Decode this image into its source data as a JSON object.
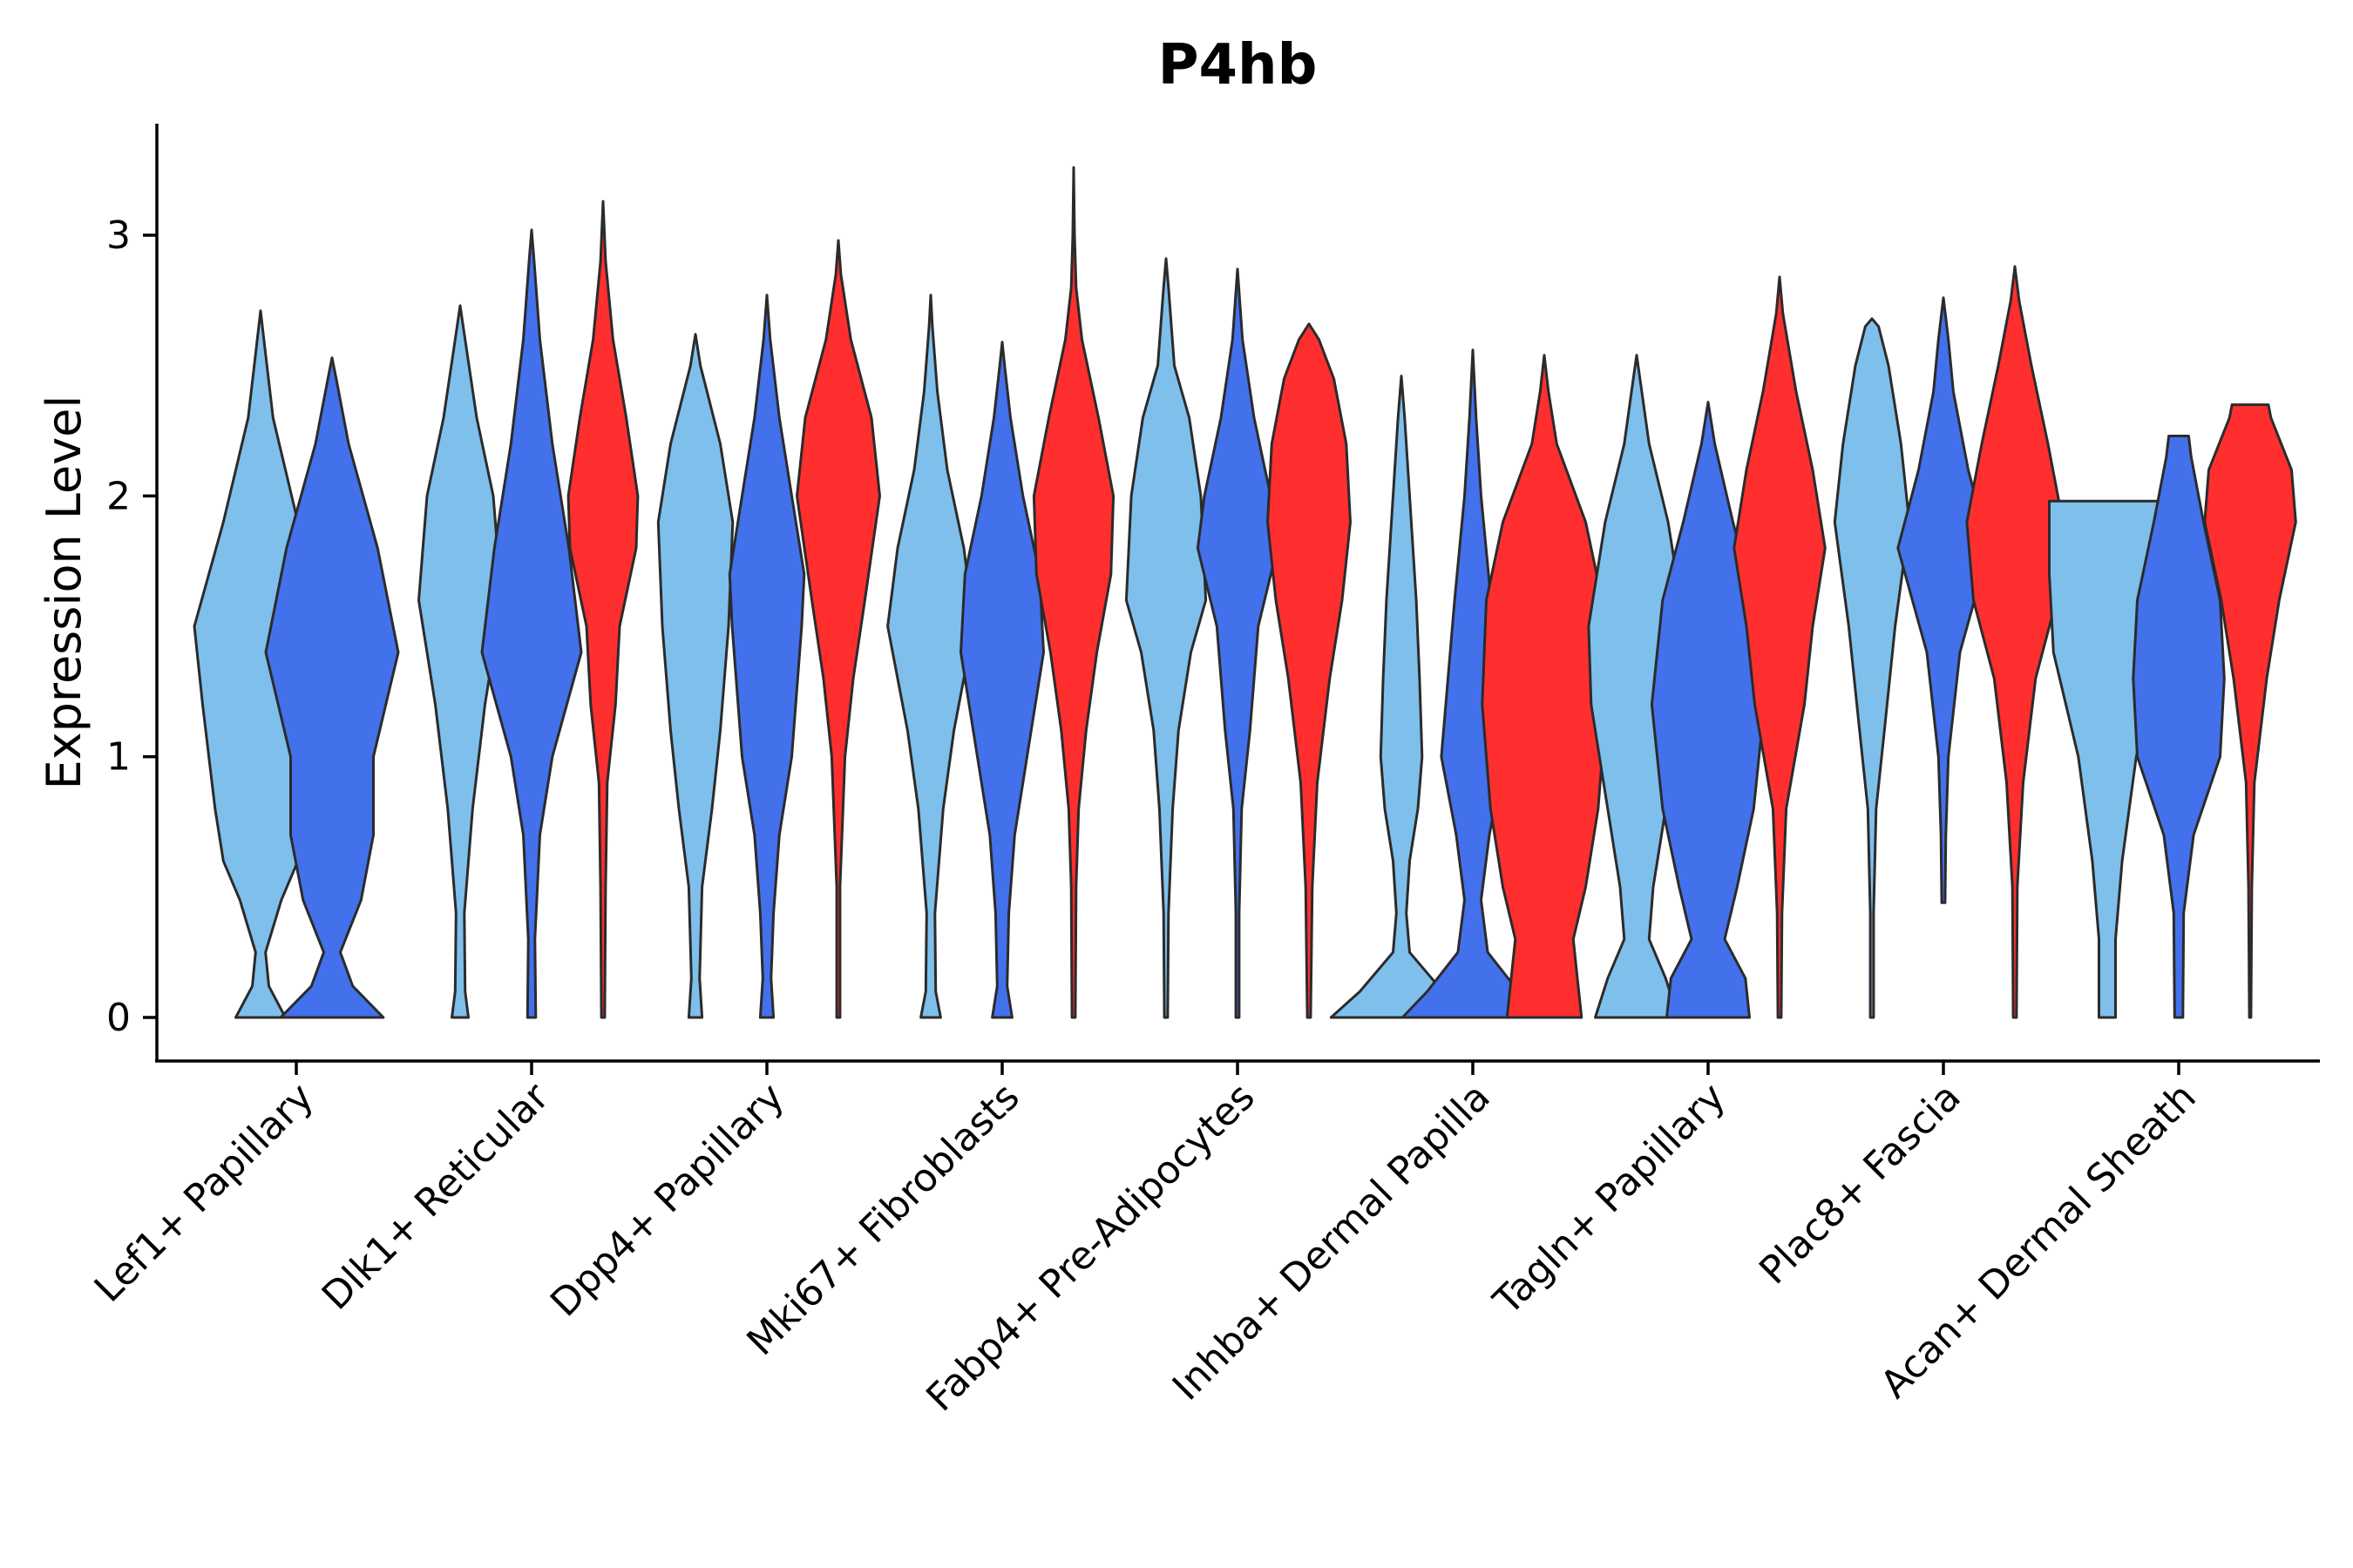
{
  "chart_data": {
    "type": "violin",
    "title": "P4hb",
    "xlabel": "",
    "ylabel": "Expression Level",
    "ylim": [
      -0.16,
      3.42
    ],
    "yticks": [
      0,
      1,
      2,
      3
    ],
    "grid": false,
    "legend": "none",
    "series_colors": [
      "#7fbfec",
      "#4371ec",
      "#ff2f2f"
    ],
    "categories": [
      "Lef1+ Papillary",
      "Dlk1+ Reticular",
      "Dpp4+ Papillary",
      "Mki67+ Fibroblasts",
      "Fabp4+ Pre-Adipocytes",
      "Inhba+ Dermal Papilla",
      "Tagln+ Papillary",
      "Plac8+ Fascia",
      "Acan+ Dermal Sheath"
    ],
    "violins": [
      {
        "category": 0,
        "series": 0,
        "min": 0,
        "max": 2.71,
        "profile": [
          [
            0,
            0.3
          ],
          [
            0.12,
            0.1
          ],
          [
            0.25,
            0.06
          ],
          [
            0.45,
            0.25
          ],
          [
            0.6,
            0.45
          ],
          [
            0.8,
            0.55
          ],
          [
            1.2,
            0.7
          ],
          [
            1.5,
            0.8
          ],
          [
            1.9,
            0.45
          ],
          [
            2.3,
            0.15
          ],
          [
            2.6,
            0.04
          ],
          [
            2.71,
            0
          ]
        ]
      },
      {
        "category": 0,
        "series": 1,
        "min": 0,
        "max": 2.53,
        "profile": [
          [
            0,
            0.62
          ],
          [
            0.12,
            0.25
          ],
          [
            0.25,
            0.1
          ],
          [
            0.45,
            0.35
          ],
          [
            0.7,
            0.5
          ],
          [
            1.0,
            0.5
          ],
          [
            1.4,
            0.8
          ],
          [
            1.8,
            0.55
          ],
          [
            2.2,
            0.2
          ],
          [
            2.45,
            0.05
          ],
          [
            2.53,
            0
          ]
        ]
      },
      {
        "category": 1,
        "series": 0,
        "min": 0,
        "max": 2.73,
        "profile": [
          [
            0,
            0.1
          ],
          [
            0.1,
            0.06
          ],
          [
            0.4,
            0.05
          ],
          [
            0.8,
            0.15
          ],
          [
            1.2,
            0.3
          ],
          [
            1.6,
            0.5
          ],
          [
            2.0,
            0.4
          ],
          [
            2.3,
            0.2
          ],
          [
            2.6,
            0.06
          ],
          [
            2.73,
            0
          ]
        ]
      },
      {
        "category": 1,
        "series": 1,
        "min": 0,
        "max": 3.02,
        "profile": [
          [
            0,
            0.05
          ],
          [
            0.3,
            0.04
          ],
          [
            0.7,
            0.1
          ],
          [
            1.0,
            0.25
          ],
          [
            1.4,
            0.6
          ],
          [
            1.8,
            0.45
          ],
          [
            2.2,
            0.25
          ],
          [
            2.6,
            0.1
          ],
          [
            2.9,
            0.03
          ],
          [
            3.02,
            0
          ]
        ]
      },
      {
        "category": 1,
        "series": 2,
        "min": 0,
        "max": 3.13,
        "profile": [
          [
            0,
            0.02
          ],
          [
            0.5,
            0.03
          ],
          [
            0.9,
            0.05
          ],
          [
            1.2,
            0.15
          ],
          [
            1.5,
            0.2
          ],
          [
            1.8,
            0.4
          ],
          [
            2.0,
            0.42
          ],
          [
            2.3,
            0.28
          ],
          [
            2.6,
            0.12
          ],
          [
            2.9,
            0.03
          ],
          [
            3.13,
            0
          ]
        ]
      },
      {
        "category": 2,
        "series": 0,
        "min": 0,
        "max": 2.62,
        "profile": [
          [
            0,
            0.08
          ],
          [
            0.15,
            0.05
          ],
          [
            0.5,
            0.08
          ],
          [
            0.8,
            0.2
          ],
          [
            1.1,
            0.3
          ],
          [
            1.5,
            0.4
          ],
          [
            1.9,
            0.45
          ],
          [
            2.2,
            0.3
          ],
          [
            2.5,
            0.06
          ],
          [
            2.62,
            0
          ]
        ]
      },
      {
        "category": 2,
        "series": 1,
        "min": 0,
        "max": 2.77,
        "profile": [
          [
            0,
            0.08
          ],
          [
            0.15,
            0.05
          ],
          [
            0.4,
            0.08
          ],
          [
            0.7,
            0.15
          ],
          [
            1.0,
            0.3
          ],
          [
            1.5,
            0.42
          ],
          [
            1.7,
            0.45
          ],
          [
            2.0,
            0.3
          ],
          [
            2.3,
            0.15
          ],
          [
            2.6,
            0.04
          ],
          [
            2.77,
            0
          ]
        ]
      },
      {
        "category": 2,
        "series": 2,
        "min": 0,
        "max": 2.98,
        "profile": [
          [
            0,
            0.02
          ],
          [
            0.5,
            0.02
          ],
          [
            1.0,
            0.08
          ],
          [
            1.3,
            0.18
          ],
          [
            1.6,
            0.32
          ],
          [
            2.0,
            0.5
          ],
          [
            2.3,
            0.4
          ],
          [
            2.6,
            0.15
          ],
          [
            2.85,
            0.03
          ],
          [
            2.98,
            0
          ]
        ]
      },
      {
        "category": 3,
        "series": 0,
        "min": 0,
        "max": 2.77,
        "profile": [
          [
            0,
            0.12
          ],
          [
            0.1,
            0.06
          ],
          [
            0.4,
            0.05
          ],
          [
            0.8,
            0.15
          ],
          [
            1.1,
            0.28
          ],
          [
            1.5,
            0.52
          ],
          [
            1.8,
            0.4
          ],
          [
            2.1,
            0.2
          ],
          [
            2.4,
            0.08
          ],
          [
            2.65,
            0.02
          ],
          [
            2.77,
            0
          ]
        ]
      },
      {
        "category": 3,
        "series": 1,
        "min": 0,
        "max": 2.59,
        "profile": [
          [
            0,
            0.12
          ],
          [
            0.12,
            0.06
          ],
          [
            0.4,
            0.08
          ],
          [
            0.7,
            0.15
          ],
          [
            1.0,
            0.3
          ],
          [
            1.4,
            0.5
          ],
          [
            1.7,
            0.45
          ],
          [
            2.0,
            0.25
          ],
          [
            2.3,
            0.1
          ],
          [
            2.5,
            0.03
          ],
          [
            2.59,
            0
          ]
        ]
      },
      {
        "category": 3,
        "series": 2,
        "min": 0,
        "max": 3.26,
        "profile": [
          [
            0,
            0.02
          ],
          [
            0.5,
            0.03
          ],
          [
            0.8,
            0.06
          ],
          [
            1.1,
            0.15
          ],
          [
            1.4,
            0.28
          ],
          [
            1.7,
            0.45
          ],
          [
            2.0,
            0.48
          ],
          [
            2.3,
            0.3
          ],
          [
            2.6,
            0.1
          ],
          [
            2.8,
            0.03
          ],
          [
            3.0,
            0.01
          ],
          [
            3.26,
            0
          ]
        ]
      },
      {
        "category": 4,
        "series": 0,
        "min": 0,
        "max": 2.91,
        "profile": [
          [
            0,
            0.02
          ],
          [
            0.4,
            0.03
          ],
          [
            0.8,
            0.08
          ],
          [
            1.1,
            0.15
          ],
          [
            1.4,
            0.3
          ],
          [
            1.6,
            0.48
          ],
          [
            2.0,
            0.42
          ],
          [
            2.3,
            0.28
          ],
          [
            2.5,
            0.1
          ],
          [
            2.8,
            0.03
          ],
          [
            2.91,
            0
          ]
        ]
      },
      {
        "category": 4,
        "series": 1,
        "min": 0,
        "max": 2.87,
        "profile": [
          [
            0,
            0.02
          ],
          [
            0.4,
            0.02
          ],
          [
            0.8,
            0.05
          ],
          [
            1.1,
            0.15
          ],
          [
            1.5,
            0.25
          ],
          [
            1.8,
            0.48
          ],
          [
            2.0,
            0.4
          ],
          [
            2.3,
            0.2
          ],
          [
            2.6,
            0.06
          ],
          [
            2.87,
            0
          ]
        ]
      },
      {
        "category": 4,
        "series": 2,
        "min": 0,
        "max": 2.66,
        "profile": [
          [
            0,
            0.02
          ],
          [
            0.5,
            0.04
          ],
          [
            0.9,
            0.1
          ],
          [
            1.3,
            0.25
          ],
          [
            1.6,
            0.4
          ],
          [
            1.9,
            0.5
          ],
          [
            2.2,
            0.45
          ],
          [
            2.45,
            0.3
          ],
          [
            2.6,
            0.12
          ],
          [
            2.66,
            0
          ]
        ]
      },
      {
        "category": 5,
        "series": 0,
        "min": 0,
        "max": 2.46,
        "profile": [
          [
            0,
            0.85
          ],
          [
            0.1,
            0.5
          ],
          [
            0.25,
            0.1
          ],
          [
            0.4,
            0.06
          ],
          [
            0.6,
            0.1
          ],
          [
            0.8,
            0.2
          ],
          [
            1.0,
            0.25
          ],
          [
            1.3,
            0.22
          ],
          [
            1.6,
            0.18
          ],
          [
            2.0,
            0.1
          ],
          [
            2.3,
            0.04
          ],
          [
            2.46,
            0
          ]
        ]
      },
      {
        "category": 5,
        "series": 1,
        "min": 0,
        "max": 2.56,
        "profile": [
          [
            0,
            0.85
          ],
          [
            0.1,
            0.55
          ],
          [
            0.25,
            0.18
          ],
          [
            0.45,
            0.1
          ],
          [
            0.7,
            0.2
          ],
          [
            1.0,
            0.38
          ],
          [
            1.3,
            0.3
          ],
          [
            1.6,
            0.22
          ],
          [
            2.0,
            0.1
          ],
          [
            2.3,
            0.04
          ],
          [
            2.56,
            0
          ]
        ]
      },
      {
        "category": 5,
        "series": 2,
        "min": 0,
        "max": 2.54,
        "profile": [
          [
            0,
            0.45
          ],
          [
            0.15,
            0.4
          ],
          [
            0.3,
            0.35
          ],
          [
            0.5,
            0.5
          ],
          [
            0.8,
            0.65
          ],
          [
            1.2,
            0.75
          ],
          [
            1.6,
            0.7
          ],
          [
            1.9,
            0.5
          ],
          [
            2.2,
            0.15
          ],
          [
            2.4,
            0.05
          ],
          [
            2.54,
            0
          ]
        ]
      },
      {
        "category": 6,
        "series": 0,
        "min": 0,
        "max": 2.54,
        "profile": [
          [
            0,
            0.5
          ],
          [
            0.15,
            0.35
          ],
          [
            0.3,
            0.15
          ],
          [
            0.5,
            0.2
          ],
          [
            0.8,
            0.35
          ],
          [
            1.2,
            0.55
          ],
          [
            1.5,
            0.58
          ],
          [
            1.9,
            0.38
          ],
          [
            2.2,
            0.15
          ],
          [
            2.45,
            0.04
          ],
          [
            2.54,
            0
          ]
        ]
      },
      {
        "category": 6,
        "series": 1,
        "min": 0,
        "max": 2.36,
        "profile": [
          [
            0,
            0.5
          ],
          [
            0.15,
            0.45
          ],
          [
            0.3,
            0.2
          ],
          [
            0.5,
            0.35
          ],
          [
            0.8,
            0.55
          ],
          [
            1.2,
            0.68
          ],
          [
            1.6,
            0.55
          ],
          [
            1.9,
            0.3
          ],
          [
            2.2,
            0.08
          ],
          [
            2.36,
            0
          ]
        ]
      },
      {
        "category": 6,
        "series": 2,
        "min": 0,
        "max": 2.84,
        "profile": [
          [
            0,
            0.02
          ],
          [
            0.4,
            0.03
          ],
          [
            0.8,
            0.08
          ],
          [
            1.2,
            0.3
          ],
          [
            1.5,
            0.4
          ],
          [
            1.8,
            0.55
          ],
          [
            2.1,
            0.4
          ],
          [
            2.4,
            0.2
          ],
          [
            2.7,
            0.04
          ],
          [
            2.84,
            0
          ]
        ]
      },
      {
        "category": 7,
        "series": 0,
        "min": 0,
        "max": 2.68,
        "profile": [
          [
            0,
            0.02
          ],
          [
            0.4,
            0.02
          ],
          [
            0.8,
            0.05
          ],
          [
            1.1,
            0.15
          ],
          [
            1.5,
            0.28
          ],
          [
            1.9,
            0.45
          ],
          [
            2.2,
            0.35
          ],
          [
            2.5,
            0.2
          ],
          [
            2.65,
            0.08
          ],
          [
            2.68,
            0
          ]
        ]
      },
      {
        "category": 7,
        "series": 1,
        "min": 0.44,
        "max": 2.76,
        "profile": [
          [
            0.44,
            0.02
          ],
          [
            0.7,
            0.03
          ],
          [
            1.0,
            0.06
          ],
          [
            1.4,
            0.2
          ],
          [
            1.8,
            0.55
          ],
          [
            2.1,
            0.3
          ],
          [
            2.4,
            0.12
          ],
          [
            2.6,
            0.06
          ],
          [
            2.76,
            0
          ]
        ]
      },
      {
        "category": 7,
        "series": 2,
        "min": 0,
        "max": 2.88,
        "profile": [
          [
            0,
            0.02
          ],
          [
            0.5,
            0.03
          ],
          [
            0.9,
            0.1
          ],
          [
            1.3,
            0.25
          ],
          [
            1.6,
            0.5
          ],
          [
            1.9,
            0.58
          ],
          [
            2.2,
            0.4
          ],
          [
            2.5,
            0.2
          ],
          [
            2.75,
            0.05
          ],
          [
            2.88,
            0
          ]
        ]
      },
      {
        "category": 8,
        "series": 0,
        "min": 0,
        "max": 1.98,
        "profile": [
          [
            0,
            0.1
          ],
          [
            0.3,
            0.1
          ],
          [
            0.6,
            0.18
          ],
          [
            1.0,
            0.35
          ],
          [
            1.4,
            0.65
          ],
          [
            1.7,
            0.7
          ],
          [
            1.98,
            0.7
          ]
        ]
      },
      {
        "category": 8,
        "series": 1,
        "min": 0,
        "max": 2.23,
        "profile": [
          [
            0,
            0.05
          ],
          [
            0.4,
            0.06
          ],
          [
            0.7,
            0.18
          ],
          [
            1.0,
            0.5
          ],
          [
            1.3,
            0.55
          ],
          [
            1.6,
            0.5
          ],
          [
            1.9,
            0.3
          ],
          [
            2.15,
            0.15
          ],
          [
            2.23,
            0.12
          ]
        ]
      },
      {
        "category": 8,
        "series": 2,
        "min": 0,
        "max": 2.35,
        "profile": [
          [
            0,
            0.01
          ],
          [
            0.5,
            0.02
          ],
          [
            0.9,
            0.05
          ],
          [
            1.3,
            0.2
          ],
          [
            1.6,
            0.35
          ],
          [
            1.9,
            0.55
          ],
          [
            2.1,
            0.5
          ],
          [
            2.3,
            0.25
          ],
          [
            2.35,
            0.22
          ]
        ]
      }
    ]
  }
}
